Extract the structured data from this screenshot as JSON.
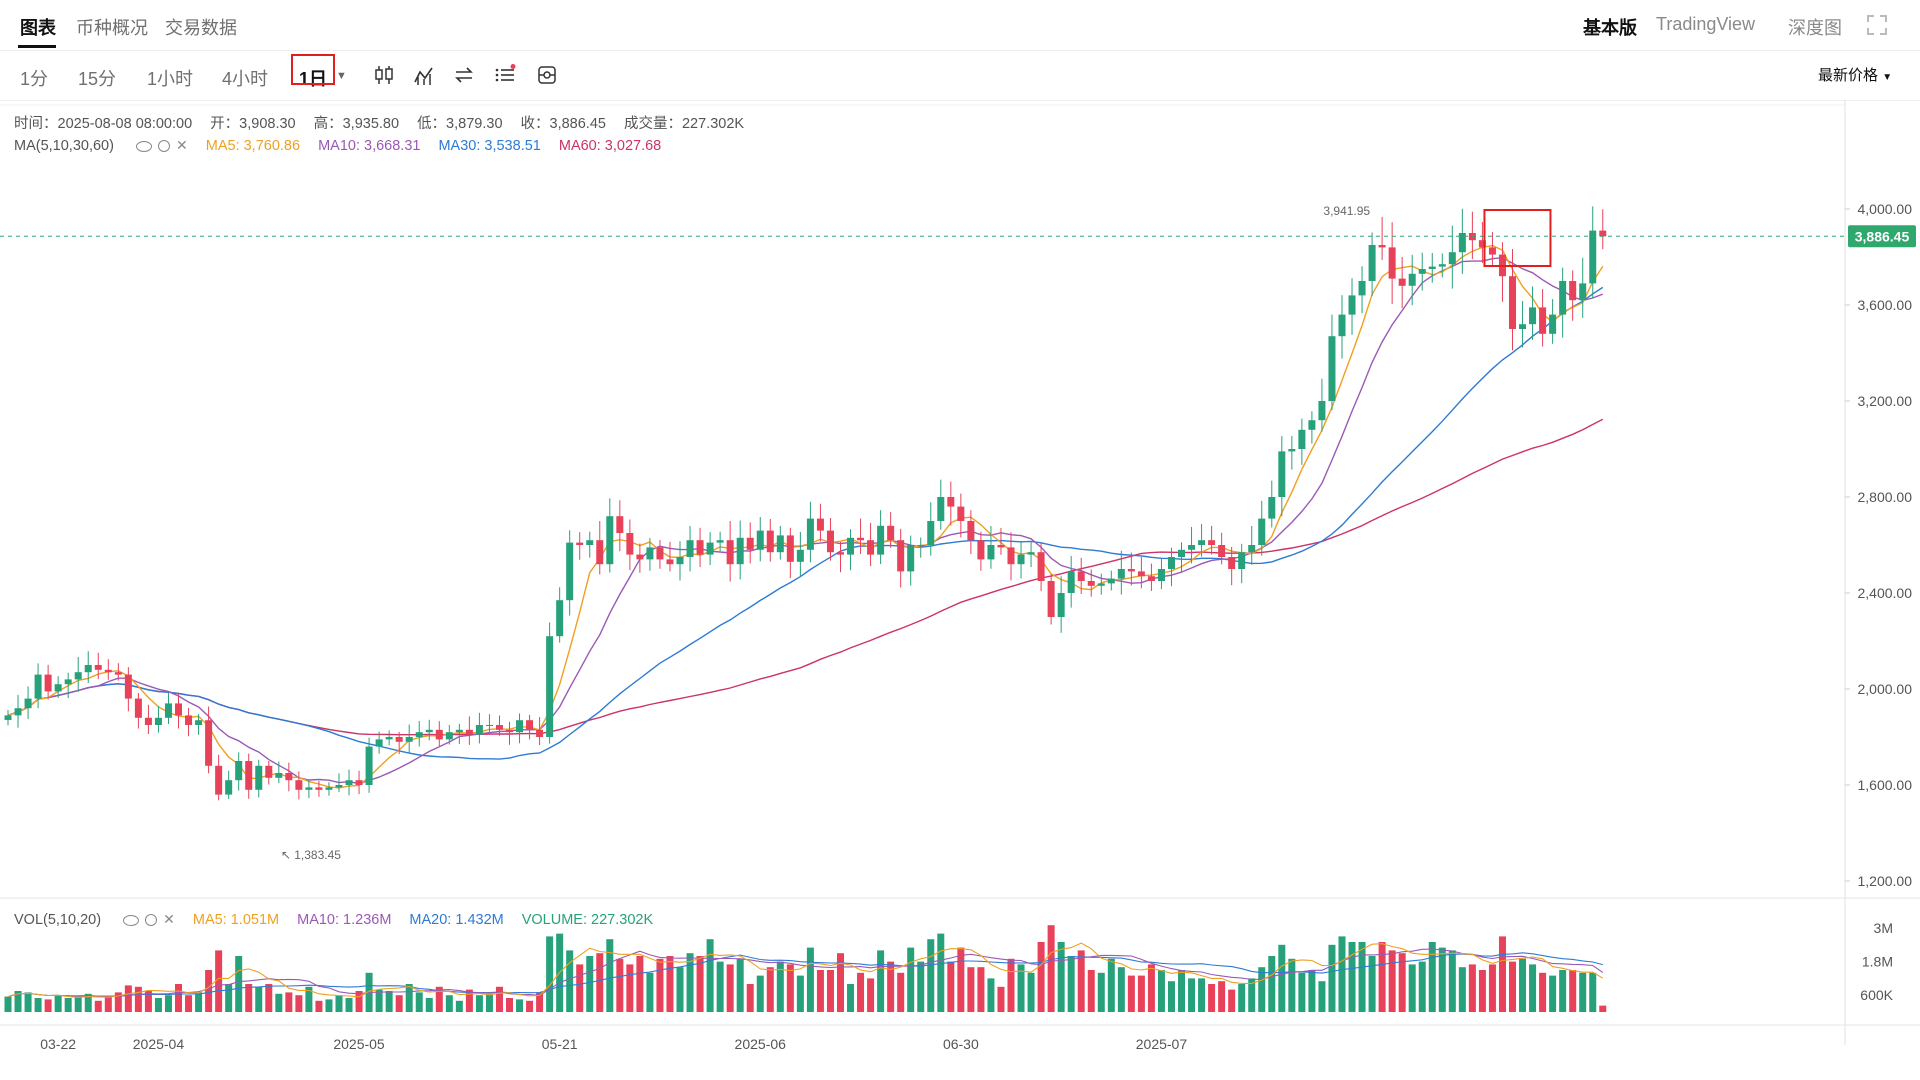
{
  "tabs": {
    "chart": "图表",
    "coin_overview": "币种概况",
    "trade_data": "交易数据"
  },
  "right_tabs": {
    "basic": "基本版",
    "tradingview": "TradingView",
    "depth": "深度图"
  },
  "intervals": [
    "1分",
    "15分",
    "1小时",
    "4小时",
    "1日"
  ],
  "active_interval": "1日",
  "price_select": "最新价格",
  "info": {
    "time": "时间：2025-08-08 08:00:00",
    "open": "开：3,908.30",
    "high": "高：3,935.80",
    "low": "低：3,879.30",
    "close": "收：3,886.45",
    "volume": "成交量：227.302K"
  },
  "ma_legend": {
    "label": "MA(5,10,30,60)",
    "ma5": "MA5: 3,760.86",
    "ma10": "MA10: 3,668.31",
    "ma30": "MA30: 3,538.51",
    "ma60": "MA60: 3,027.68"
  },
  "vol_legend": {
    "label": "VOL(5,10,20)",
    "ma5": "MA5: 1.051M",
    "ma10": "MA10: 1.236M",
    "ma20": "MA20: 1.432M",
    "volume": "VOLUME: 227.302K"
  },
  "colors": {
    "up": "#26a17b",
    "down": "#e8415a",
    "ma5": "#f0a020",
    "ma10": "#9b59b6",
    "ma30": "#2e7bd6",
    "ma60": "#cc3366",
    "last_price": "#2fa86e"
  },
  "chart_data": {
    "type": "candlestick",
    "ylim": [
      1200,
      4000
    ],
    "y_ticks": [
      "4,000.00",
      "3,600.00",
      "3,200.00",
      "2,800.00",
      "2,400.00",
      "2,000.00",
      "1,600.00",
      "1,200.00"
    ],
    "y_tick_values": [
      4000,
      3600,
      3200,
      2800,
      2400,
      2000,
      1600,
      1200
    ],
    "vol_ticks": [
      "3M",
      "1.8M",
      "600K"
    ],
    "vol_tick_values": [
      3000000,
      1800000,
      600000
    ],
    "x_ticks": [
      "03-22",
      "2025-04",
      "2025-05",
      "05-21",
      "2025-06",
      "06-30",
      "2025-07"
    ],
    "x_tick_days": [
      0,
      10,
      30,
      50,
      70,
      90,
      110
    ],
    "last_price": 3886.45,
    "last_price_label": "3,886.45",
    "annotations": [
      {
        "text": "3,941.95",
        "day": 132,
        "value": 3941.95
      },
      {
        "text": "↖ 1,383.45",
        "day": 23,
        "value": 1383.45
      }
    ],
    "highlight_day": 144,
    "start_day": -5,
    "closes": [
      1890,
      1920,
      1960,
      2060,
      1990,
      2020,
      2040,
      2070,
      2100,
      2080,
      2070,
      2060,
      1960,
      1880,
      1850,
      1880,
      1940,
      1890,
      1850,
      1870,
      1680,
      1560,
      1620,
      1700,
      1580,
      1680,
      1630,
      1650,
      1620,
      1580,
      1590,
      1580,
      1590,
      1600,
      1620,
      1600,
      1760,
      1790,
      1800,
      1780,
      1800,
      1820,
      1830,
      1790,
      1820,
      1830,
      1810,
      1850,
      1850,
      1830,
      1820,
      1870,
      1830,
      1800,
      2220,
      2370,
      2610,
      2600,
      2620,
      2520,
      2720,
      2650,
      2560,
      2540,
      2590,
      2540,
      2520,
      2550,
      2620,
      2560,
      2610,
      2620,
      2520,
      2630,
      2580,
      2660,
      2570,
      2640,
      2530,
      2580,
      2710,
      2660,
      2570,
      2560,
      2630,
      2620,
      2560,
      2680,
      2620,
      2490,
      2600,
      2600,
      2700,
      2800,
      2760,
      2700,
      2620,
      2540,
      2600,
      2590,
      2520,
      2560,
      2570,
      2450,
      2300,
      2400,
      2490,
      2450,
      2430,
      2440,
      2460,
      2500,
      2490,
      2470,
      2450,
      2500,
      2550,
      2580,
      2600,
      2620,
      2600,
      2550,
      2500,
      2570,
      2600,
      2710,
      2800,
      2990,
      3000,
      3080,
      3120,
      3200,
      3470,
      3560,
      3640,
      3700,
      3850,
      3840,
      3710,
      3680,
      3730,
      3750,
      3760,
      3770,
      3820,
      3900,
      3870,
      3840,
      3810,
      3720,
      3500,
      3520,
      3590,
      3480,
      3560,
      3700,
      3620,
      3690,
      3910,
      3886
    ],
    "volumes": [
      550000,
      750000,
      700000,
      500000,
      450000,
      600000,
      500000,
      550000,
      650000,
      400000,
      550000,
      700000,
      950000,
      900000,
      750000,
      500000,
      600000,
      1000000,
      600000,
      700000,
      1500000,
      2200000,
      1000000,
      2000000,
      1000000,
      900000,
      1000000,
      650000,
      700000,
      600000,
      900000,
      400000,
      450000,
      600000,
      500000,
      750000,
      1400000,
      800000,
      750000,
      600000,
      1000000,
      700000,
      500000,
      900000,
      600000,
      400000,
      800000,
      600000,
      650000,
      900000,
      500000,
      450000,
      400000,
      700000,
      2700000,
      2800000,
      2200000,
      1700000,
      2000000,
      2100000,
      2600000,
      1900000,
      1700000,
      2000000,
      1400000,
      1900000,
      2000000,
      1600000,
      2100000,
      2000000,
      2600000,
      1800000,
      1700000,
      1900000,
      1000000,
      1300000,
      1600000,
      1800000,
      1700000,
      1300000,
      2300000,
      1500000,
      1500000,
      2100000,
      1000000,
      1400000,
      1200000,
      2200000,
      1800000,
      1400000,
      2300000,
      1800000,
      2600000,
      2800000,
      1800000,
      2300000,
      1600000,
      1600000,
      1200000,
      900000,
      1900000,
      1700000,
      1400000,
      2500000,
      3100000,
      2500000,
      2000000,
      2200000,
      1500000,
      1400000,
      1900000,
      1600000,
      1300000,
      1300000,
      1700000,
      1500000,
      1100000,
      1500000,
      1200000,
      1200000,
      1000000,
      1100000,
      800000,
      1000000,
      1200000,
      1600000,
      2000000,
      2400000,
      1900000,
      1400000,
      1500000,
      1100000,
      2400000,
      2700000,
      2500000,
      2500000,
      2000000,
      2500000,
      2200000,
      2100000,
      1700000,
      1800000,
      2500000,
      2300000,
      2200000,
      1600000,
      1700000,
      1500000,
      1700000,
      2700000,
      1800000,
      1900000,
      1700000,
      1400000,
      1300000,
      1500000,
      1500000,
      1400000,
      1400000,
      227302
    ]
  }
}
